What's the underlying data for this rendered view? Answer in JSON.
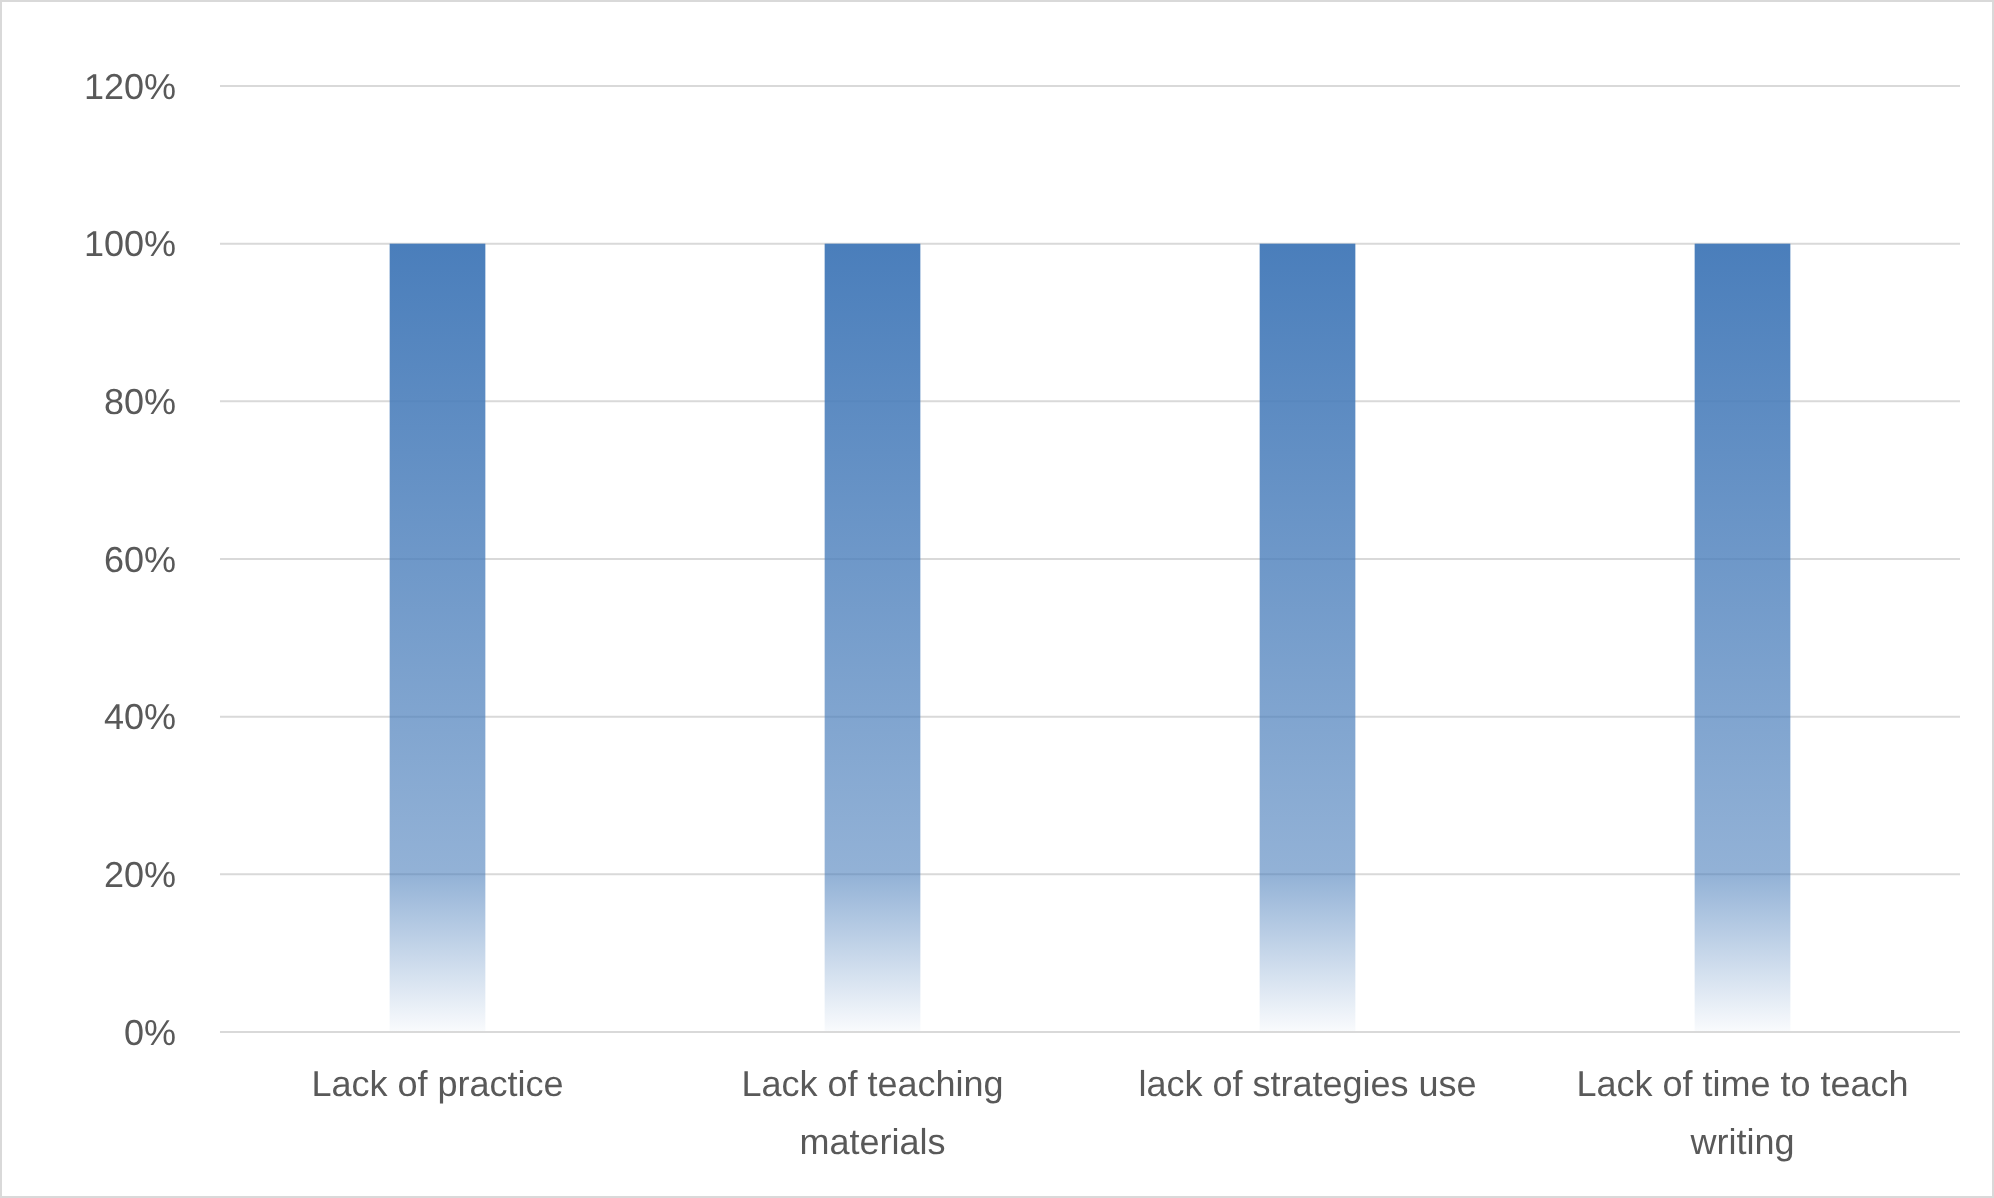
{
  "chart_data": {
    "type": "bar",
    "categories": [
      "Lack of practice",
      "Lack of teaching materials",
      "lack of strategies use",
      "Lack of time to teach writing"
    ],
    "values": [
      100,
      100,
      100,
      100
    ],
    "color": "#4a7ebb",
    "ylim": [
      0,
      120
    ],
    "yticks": [
      {
        "value": 0,
        "label": "0%"
      },
      {
        "value": 20,
        "label": "20%"
      },
      {
        "value": 40,
        "label": "40%"
      },
      {
        "value": 60,
        "label": "60%"
      },
      {
        "value": 80,
        "label": "80%"
      },
      {
        "value": 100,
        "label": "100%"
      },
      {
        "value": 120,
        "label": "120%"
      }
    ],
    "grid": "y"
  }
}
